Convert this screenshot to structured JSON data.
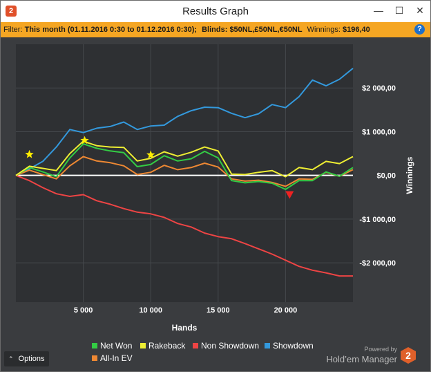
{
  "window": {
    "title": "Results Graph",
    "app_icon": "hm2-logo-icon",
    "controls": [
      "minimize-icon",
      "maximize-icon",
      "close-icon"
    ]
  },
  "filter": {
    "label": "Filter:",
    "period": "This month (01.11.2016 0:30 to 01.12.2016 0:30);",
    "blinds_label": "Blinds:",
    "blinds": "$50NL,£50NL,€50NL",
    "winnings_label": "Winnings:",
    "winnings": "$196,40",
    "help_icon": "question-mark-icon"
  },
  "chart_data": {
    "type": "line",
    "xlabel": "Hands",
    "ylabel": "Winnings",
    "xlim": [
      0,
      25000
    ],
    "ylim": [
      -2900,
      3000
    ],
    "x_ticks": [
      5000,
      10000,
      15000,
      20000
    ],
    "x_tick_labels": [
      "5 000",
      "10 000",
      "15 000",
      "20 000"
    ],
    "y_ticks": [
      2000,
      1000,
      0,
      -1000,
      -2000
    ],
    "y_tick_labels": [
      "$2 000,00",
      "$1 000,00",
      "$0,00",
      "-$1 000,00",
      "-$2 000,00"
    ],
    "grid": true,
    "legend_position": "bottom",
    "series": [
      {
        "name": "Showdown",
        "color": "#3399dd",
        "x": [
          0,
          1000,
          2000,
          3000,
          4000,
          5000,
          6000,
          7000,
          8000,
          9000,
          10000,
          11000,
          12000,
          13000,
          14000,
          15000,
          16000,
          17000,
          18000,
          19000,
          20000,
          21000,
          22000,
          23000,
          24000,
          25000
        ],
        "y": [
          0,
          150,
          320,
          650,
          1050,
          980,
          1080,
          1120,
          1220,
          1050,
          1130,
          1150,
          1350,
          1480,
          1560,
          1550,
          1420,
          1320,
          1410,
          1620,
          1550,
          1800,
          2180,
          2050,
          2200,
          2450
        ]
      },
      {
        "name": "Net Won",
        "color": "#33cc44",
        "x": [
          0,
          1000,
          2000,
          3000,
          4000,
          5000,
          6000,
          7000,
          8000,
          9000,
          10000,
          11000,
          12000,
          13000,
          14000,
          15000,
          16000,
          17000,
          18000,
          19000,
          20000,
          21000,
          22000,
          23000,
          24000,
          25000
        ],
        "y": [
          0,
          180,
          80,
          -30,
          400,
          720,
          620,
          560,
          520,
          200,
          250,
          450,
          330,
          380,
          550,
          400,
          -120,
          -170,
          -140,
          -180,
          -320,
          -120,
          -120,
          80,
          -20,
          180
        ]
      },
      {
        "name": "Rakeback",
        "color": "#eeee33",
        "x": [
          0,
          1000,
          2000,
          3000,
          4000,
          5000,
          6000,
          7000,
          8000,
          9000,
          10000,
          11000,
          12000,
          13000,
          14000,
          15000,
          16000,
          17000,
          18000,
          19000,
          20000,
          21000,
          22000,
          23000,
          24000,
          25000
        ],
        "y": [
          0,
          210,
          160,
          110,
          500,
          780,
          680,
          650,
          640,
          330,
          390,
          540,
          440,
          530,
          650,
          560,
          30,
          20,
          70,
          110,
          -30,
          180,
          130,
          320,
          270,
          430
        ]
      },
      {
        "name": "Non Showdown",
        "color": "#ee4444",
        "x": [
          0,
          1000,
          2000,
          3000,
          4000,
          5000,
          6000,
          7000,
          8000,
          9000,
          10000,
          11000,
          12000,
          13000,
          14000,
          15000,
          16000,
          17000,
          18000,
          19000,
          20000,
          21000,
          22000,
          23000,
          24000,
          25000
        ],
        "y": [
          0,
          -120,
          -280,
          -420,
          -480,
          -440,
          -580,
          -660,
          -760,
          -840,
          -880,
          -960,
          -1100,
          -1180,
          -1320,
          -1400,
          -1450,
          -1560,
          -1680,
          -1800,
          -1940,
          -2080,
          -2170,
          -2230,
          -2300,
          -2300
        ]
      },
      {
        "name": "All-In EV",
        "color": "#ee8833",
        "x": [
          0,
          1000,
          2000,
          3000,
          4000,
          5000,
          6000,
          7000,
          8000,
          9000,
          10000,
          11000,
          12000,
          13000,
          14000,
          15000,
          16000,
          17000,
          18000,
          19000,
          20000,
          21000,
          22000,
          23000,
          24000,
          25000
        ],
        "y": [
          0,
          120,
          20,
          -80,
          220,
          430,
          330,
          290,
          220,
          20,
          70,
          230,
          130,
          180,
          280,
          190,
          -80,
          -130,
          -110,
          -160,
          -250,
          -80,
          -90,
          70,
          -20,
          130
        ]
      }
    ],
    "markers": [
      {
        "type": "star",
        "x": 1000,
        "y": 480,
        "color": "#ffee00"
      },
      {
        "type": "star",
        "x": 5100,
        "y": 800,
        "color": "#ffee00"
      },
      {
        "type": "star",
        "x": 10000,
        "y": 470,
        "color": "#ffee00"
      },
      {
        "type": "triangle-down",
        "x": 20300,
        "y": -440,
        "color": "#ee2222"
      }
    ]
  },
  "legend": {
    "items": [
      {
        "name": "Net Won",
        "color": "#33cc44"
      },
      {
        "name": "Rakeback",
        "color": "#eeee33"
      },
      {
        "name": "Non Showdown",
        "color": "#ee4444"
      },
      {
        "name": "Showdown",
        "color": "#3399dd"
      },
      {
        "name": "All-In EV",
        "color": "#ee8833"
      }
    ]
  },
  "footer": {
    "options_label": "Options",
    "options_icon": "chevron-up-icon",
    "powered_by": "Powered by",
    "brand": "Hold’em Manager",
    "brand_logo": "hm2-logo-icon"
  }
}
